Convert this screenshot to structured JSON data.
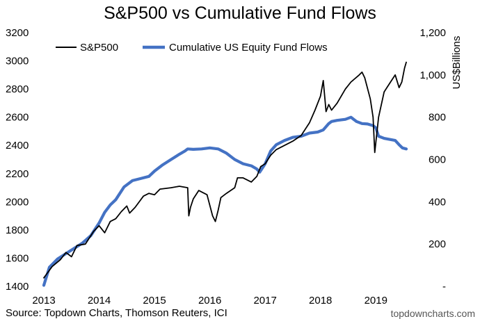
{
  "chart_data": {
    "type": "line",
    "title": "S&P500 vs Cumulative Fund Flows",
    "source": "Source: Topdown Charts, Thomson Reuters, ICI",
    "credit": "topdowncharts.com",
    "x_ticks": [
      "2013",
      "2014",
      "2015",
      "2016",
      "2017",
      "2018",
      "2019"
    ],
    "x_range": [
      2013.0,
      2019.55
    ],
    "left_axis": {
      "label": "",
      "ylim": [
        1400,
        3200
      ],
      "ticks": [
        "1400",
        "1600",
        "1800",
        "2000",
        "2200",
        "2400",
        "2600",
        "2800",
        "3000",
        "3200"
      ]
    },
    "right_axis": {
      "label": "US$Billions",
      "ylim": [
        0,
        1200
      ],
      "ticks": [
        "-",
        "200",
        "400",
        "600",
        "800",
        "1,000",
        "1,200"
      ]
    },
    "legend_placement": "top",
    "grid": false,
    "series": [
      {
        "name": "S&P500",
        "color": "#000000",
        "axis": "left",
        "x": [
          2013.0,
          2013.15,
          2013.3,
          2013.4,
          2013.5,
          2013.6,
          2013.75,
          2013.9,
          2014.0,
          2014.1,
          2014.2,
          2014.3,
          2014.4,
          2014.5,
          2014.55,
          2014.65,
          2014.8,
          2014.9,
          2015.0,
          2015.1,
          2015.3,
          2015.45,
          2015.6,
          2015.62,
          2015.65,
          2015.7,
          2015.8,
          2015.95,
          2016.05,
          2016.1,
          2016.15,
          2016.2,
          2016.3,
          2016.45,
          2016.5,
          2016.6,
          2016.75,
          2016.85,
          2016.92,
          2017.0,
          2017.1,
          2017.2,
          2017.35,
          2017.5,
          2017.65,
          2017.8,
          2017.9,
          2018.0,
          2018.05,
          2018.1,
          2018.15,
          2018.2,
          2018.3,
          2018.45,
          2018.55,
          2018.7,
          2018.75,
          2018.8,
          2018.9,
          2018.95,
          2018.98,
          2019.05,
          2019.15,
          2019.25,
          2019.35,
          2019.42,
          2019.47,
          2019.52,
          2019.55
        ],
        "values": [
          1460,
          1540,
          1590,
          1640,
          1610,
          1690,
          1700,
          1790,
          1830,
          1780,
          1860,
          1880,
          1930,
          1970,
          1920,
          1960,
          2040,
          2060,
          2050,
          2090,
          2100,
          2110,
          2100,
          1900,
          1960,
          2020,
          2080,
          2050,
          1900,
          1860,
          1940,
          2030,
          2060,
          2100,
          2170,
          2170,
          2140,
          2180,
          2250,
          2270,
          2330,
          2370,
          2400,
          2430,
          2470,
          2560,
          2650,
          2750,
          2860,
          2640,
          2690,
          2650,
          2700,
          2800,
          2850,
          2900,
          2920,
          2880,
          2730,
          2600,
          2350,
          2600,
          2780,
          2840,
          2900,
          2810,
          2850,
          2950,
          2990
        ]
      },
      {
        "name": "Cumulative US Equity Fund Flows",
        "color": "#4472C4",
        "axis": "right",
        "x": [
          2013.0,
          2013.1,
          2013.25,
          2013.4,
          2013.55,
          2013.7,
          2013.85,
          2014.0,
          2014.1,
          2014.2,
          2014.3,
          2014.45,
          2014.6,
          2014.75,
          2014.9,
          2015.0,
          2015.15,
          2015.3,
          2015.45,
          2015.55,
          2015.6,
          2015.7,
          2015.85,
          2016.0,
          2016.15,
          2016.3,
          2016.45,
          2016.6,
          2016.75,
          2016.85,
          2016.9,
          2017.0,
          2017.1,
          2017.2,
          2017.35,
          2017.5,
          2017.65,
          2017.8,
          2017.95,
          2018.05,
          2018.15,
          2018.2,
          2018.3,
          2018.45,
          2018.55,
          2018.65,
          2018.75,
          2018.85,
          2018.95,
          2019.0,
          2019.05,
          2019.15,
          2019.25,
          2019.35,
          2019.42,
          2019.48,
          2019.55
        ],
        "values": [
          5,
          90,
          130,
          155,
          180,
          205,
          240,
          300,
          350,
          385,
          410,
          470,
          500,
          510,
          520,
          545,
          575,
          600,
          625,
          640,
          650,
          648,
          650,
          655,
          650,
          630,
          600,
          580,
          570,
          555,
          540,
          580,
          640,
          670,
          690,
          705,
          710,
          725,
          730,
          740,
          770,
          780,
          785,
          790,
          800,
          780,
          770,
          768,
          760,
          750,
          710,
          700,
          695,
          690,
          670,
          655,
          650
        ]
      }
    ]
  }
}
